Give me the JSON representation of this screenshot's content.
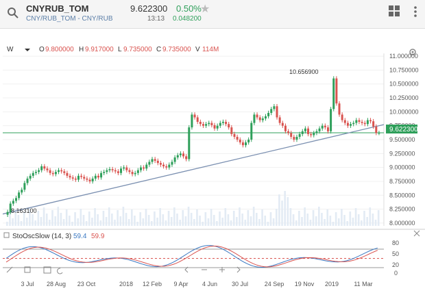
{
  "header": {
    "symbol": "CNYRUB_TOM",
    "subtitle": "CNY/RUB_TOM - CNY/RUB",
    "price": "9.622300",
    "change_pct": "0.50%",
    "time": "13:13",
    "change_abs": "0.048200"
  },
  "toolbar": {
    "interval": "W"
  },
  "ohlc": {
    "o_label": "O",
    "o": "9.800000",
    "h_label": "H",
    "h": "9.917000",
    "l_label": "L",
    "l": "9.735000",
    "c_label": "C",
    "c": "9.735000",
    "v_label": "V",
    "v": "114M"
  },
  "indicator": {
    "name": "StoOscSlow (14, 3)",
    "k": "59.4",
    "d": "59.9",
    "levels": [
      "80",
      "50",
      "20",
      "0"
    ]
  },
  "colors": {
    "up": "#2e9f5a",
    "down": "#d9534f",
    "line": "#8a9bb8",
    "accent": "#3a78c2"
  },
  "chart_data": {
    "type": "candlestick",
    "y_ticks": [
      "11.000000",
      "10.750000",
      "10.500000",
      "10.250000",
      "10.000000",
      "9.750000",
      "9.500000",
      "9.250000",
      "9.000000",
      "8.750000",
      "8.500000",
      "8.250000",
      "8.000000"
    ],
    "ylim": [
      7.95,
      11.05
    ],
    "x_ticks": [
      "3 Jul",
      "28 Aug",
      "23 Oct",
      "2018",
      "12 Feb",
      "9 Apr",
      "4 Jun",
      "30 Jul",
      "24 Sep",
      "19 Nov",
      "2019",
      "11 Mar"
    ],
    "current_price": "9.622300",
    "high_annotation": "10.656900",
    "low_annotation": "8.163100",
    "closes": [
      8.2,
      8.35,
      8.4,
      8.45,
      8.55,
      8.6,
      8.72,
      8.8,
      8.85,
      8.9,
      8.92,
      8.95,
      9.02,
      8.98,
      8.95,
      8.9,
      8.88,
      8.92,
      8.95,
      8.93,
      8.9,
      8.85,
      8.82,
      8.8,
      8.78,
      8.85,
      8.83,
      8.8,
      8.78,
      8.75,
      8.8,
      8.85,
      8.82,
      8.9,
      8.92,
      8.95,
      8.97,
      8.95,
      8.93,
      8.9,
      8.98,
      9.0,
      8.95,
      8.92,
      8.88,
      8.9,
      8.95,
      9.0,
      8.98,
      9.05,
      9.1,
      9.15,
      9.12,
      9.08,
      9.05,
      9.02,
      9.0,
      9.05,
      9.1,
      9.18,
      9.22,
      9.25,
      9.2,
      9.15,
      9.72,
      9.95,
      9.9,
      9.82,
      9.78,
      9.75,
      9.78,
      9.8,
      9.76,
      9.7,
      9.75,
      9.8,
      9.82,
      9.78,
      9.72,
      9.6,
      9.55,
      9.5,
      9.45,
      9.4,
      9.45,
      9.5,
      9.8,
      9.95,
      9.9,
      9.85,
      9.88,
      9.92,
      9.98,
      10.05,
      10.1,
      9.9,
      9.8,
      9.75,
      9.65,
      9.62,
      9.55,
      9.5,
      9.55,
      9.6,
      9.65,
      9.7,
      9.6,
      9.58,
      9.62,
      9.65,
      9.7,
      9.75,
      9.72,
      9.65,
      10.05,
      10.6,
      10.15,
      9.95,
      9.85,
      9.8,
      9.75,
      9.78,
      9.8,
      9.85,
      9.82,
      9.8,
      9.78,
      9.85,
      9.83,
      9.735,
      9.62,
      9.62
    ],
    "volume_shape": "bars along bottom of price pane",
    "trendline": {
      "from": [
        0,
        8.163
      ],
      "to": [
        131,
        9.75
      ]
    },
    "horizontal_line": 9.6223
  }
}
